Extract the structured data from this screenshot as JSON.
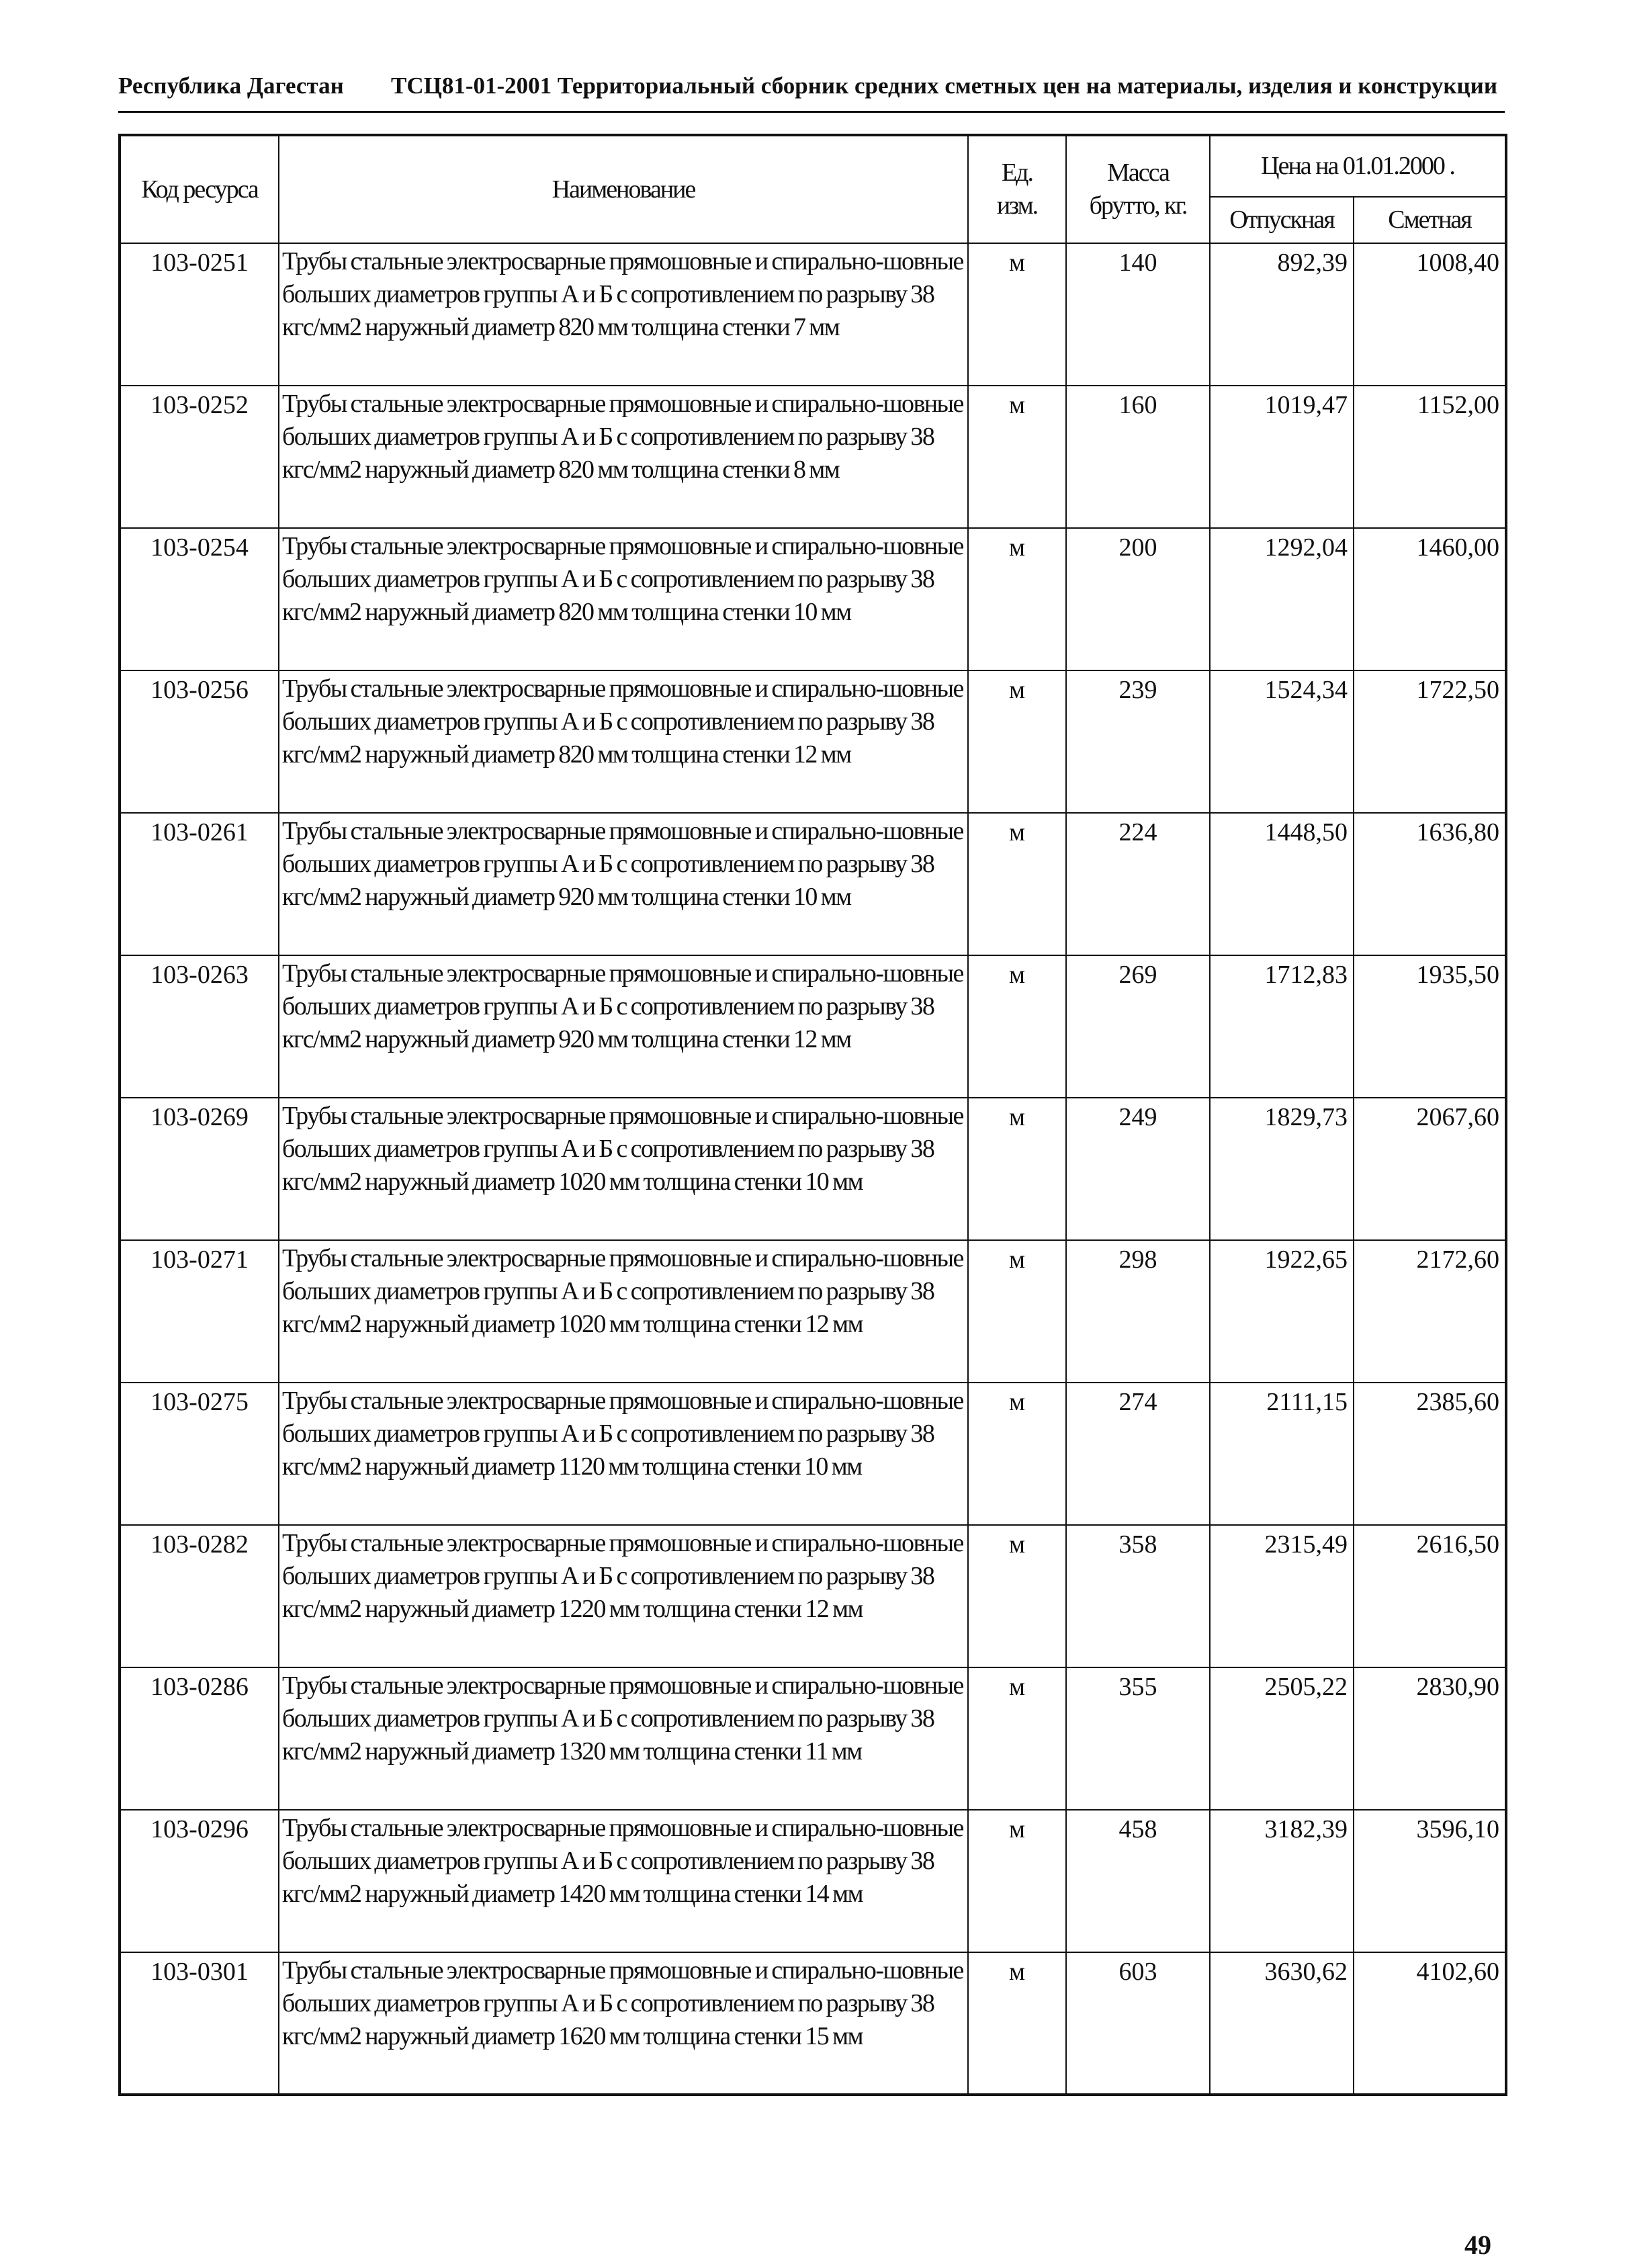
{
  "header": {
    "region": "Республика Дагестан",
    "title": "ТСЦ81-01-2001 Территориальный сборник средних сметных цен на материалы, изделия и конструкции"
  },
  "table": {
    "columns": {
      "code": "Код ресурса",
      "name": "Наименование",
      "unit": "Ед.\nизм.",
      "mass": "Масса\nбрутто, кг.",
      "price": "Цена на 01.01.2000 .",
      "release": "Отпускная",
      "estimate": "Сметная"
    },
    "rows": [
      [
        "103-0251",
        "Трубы стальные электросварные прямошовные и спирально-шовные больших диаметров группы А и Б с сопротивлением по разрыву 38 кгс/мм2 наружный диаметр 820 мм толщина стенки 7 мм",
        "м",
        "140",
        "892,39",
        "1008,40"
      ],
      [
        "103-0252",
        "Трубы стальные электросварные прямошовные и спирально-шовные больших диаметров группы А и Б с сопротивлением по разрыву 38 кгс/мм2 наружный диаметр 820 мм толщина стенки 8 мм",
        "м",
        "160",
        "1019,47",
        "1152,00"
      ],
      [
        "103-0254",
        "Трубы стальные электросварные прямошовные и спирально-шовные больших диаметров группы А и Б с сопротивлением по разрыву 38 кгс/мм2 наружный диаметр 820 мм толщина стенки 10 мм",
        "м",
        "200",
        "1292,04",
        "1460,00"
      ],
      [
        "103-0256",
        "Трубы стальные электросварные прямошовные и спирально-шовные больших диаметров группы А и Б с сопротивлением по разрыву 38 кгс/мм2 наружный диаметр 820 мм толщина стенки 12 мм",
        "м",
        "239",
        "1524,34",
        "1722,50"
      ],
      [
        "103-0261",
        "Трубы стальные электросварные прямошовные и спирально-шовные больших диаметров группы А и Б с сопротивлением по разрыву 38 кгс/мм2 наружный диаметр 920 мм толщина стенки 10 мм",
        "м",
        "224",
        "1448,50",
        "1636,80"
      ],
      [
        "103-0263",
        "Трубы стальные электросварные прямошовные и спирально-шовные больших диаметров группы А и Б с сопротивлением по разрыву 38 кгс/мм2 наружный диаметр 920 мм толщина стенки 12 мм",
        "м",
        "269",
        "1712,83",
        "1935,50"
      ],
      [
        "103-0269",
        "Трубы стальные электросварные прямошовные и спирально-шовные больших диаметров группы А и Б с сопротивлением по разрыву 38 кгс/мм2 наружный диаметр 1020 мм толщина стенки 10 мм",
        "м",
        "249",
        "1829,73",
        "2067,60"
      ],
      [
        "103-0271",
        "Трубы стальные электросварные прямошовные и спирально-шовные больших диаметров группы А и Б с сопротивлением по разрыву 38 кгс/мм2 наружный диаметр 1020 мм толщина стенки 12 мм",
        "м",
        "298",
        "1922,65",
        "2172,60"
      ],
      [
        "103-0275",
        "Трубы стальные электросварные прямошовные и спирально-шовные больших диаметров группы А и Б с сопротивлением по разрыву 38 кгс/мм2 наружный диаметр 1120 мм толщина стенки 10 мм",
        "м",
        "274",
        "2111,15",
        "2385,60"
      ],
      [
        "103-0282",
        "Трубы стальные электросварные прямошовные и спирально-шовные больших диаметров группы А и Б с сопротивлением по разрыву 38 кгс/мм2 наружный диаметр 1220 мм толщина стенки 12 мм",
        "м",
        "358",
        "2315,49",
        "2616,50"
      ],
      [
        "103-0286",
        "Трубы стальные электросварные прямошовные и спирально-шовные больших диаметров группы А и Б с сопротивлением по разрыву 38 кгс/мм2 наружный диаметр 1320 мм толщина стенки 11 мм",
        "м",
        "355",
        "2505,22",
        "2830,90"
      ],
      [
        "103-0296",
        "Трубы стальные электросварные прямошовные и спирально-шовные больших диаметров группы А и Б с сопротивлением по разрыву 38 кгс/мм2 наружный диаметр 1420 мм толщина стенки 14 мм",
        "м",
        "458",
        "3182,39",
        "3596,10"
      ],
      [
        "103-0301",
        "Трубы стальные электросварные прямошовные и спирально-шовные больших диаметров группы А и Б с сопротивлением по разрыву 38 кгс/мм2 наружный диаметр 1620 мм толщина стенки 15 мм",
        "м",
        "603",
        "3630,62",
        "4102,60"
      ]
    ]
  },
  "footer": {
    "page_number": "49"
  }
}
